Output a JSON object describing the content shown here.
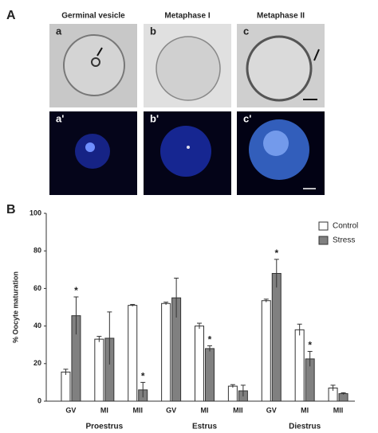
{
  "figure": {
    "panel_label": "A",
    "columns": [
      "Germinal vesicle",
      "Metaphase I",
      "Metaphase II"
    ],
    "panels": [
      "a",
      "b",
      "c",
      "a'",
      "b'",
      "c'"
    ]
  },
  "chart_data": {
    "type": "bar",
    "panel_label": "B",
    "y_label": "% Oocyte maturation",
    "categories": [
      "GV",
      "MI",
      "MII",
      "GV",
      "MI",
      "MII",
      "GV",
      "MI",
      "MII"
    ],
    "groups": [
      "Proestrus",
      "Estrus",
      "Diestrus"
    ],
    "series": [
      {
        "name": "Control",
        "color": "#ffffff",
        "values": [
          15.5,
          33,
          51,
          52,
          40,
          8,
          53.5,
          38,
          7
        ],
        "errors": [
          1.5,
          1.5,
          0.5,
          0.7,
          1.5,
          0.8,
          0.8,
          3,
          1.5
        ]
      },
      {
        "name": "Stress",
        "color": "#808080",
        "values": [
          45.5,
          33.5,
          6,
          55,
          28,
          5.5,
          68,
          22.5,
          4
        ],
        "errors": [
          10,
          14,
          4,
          10.5,
          1.5,
          3,
          7.5,
          4,
          0.5
        ],
        "markers": [
          "*",
          null,
          "*",
          null,
          "*",
          null,
          "*",
          "*",
          null
        ]
      }
    ],
    "ylim": [
      0,
      100
    ],
    "yticks": [
      0,
      20,
      40,
      60,
      80,
      100
    ],
    "legend": "top-right"
  }
}
